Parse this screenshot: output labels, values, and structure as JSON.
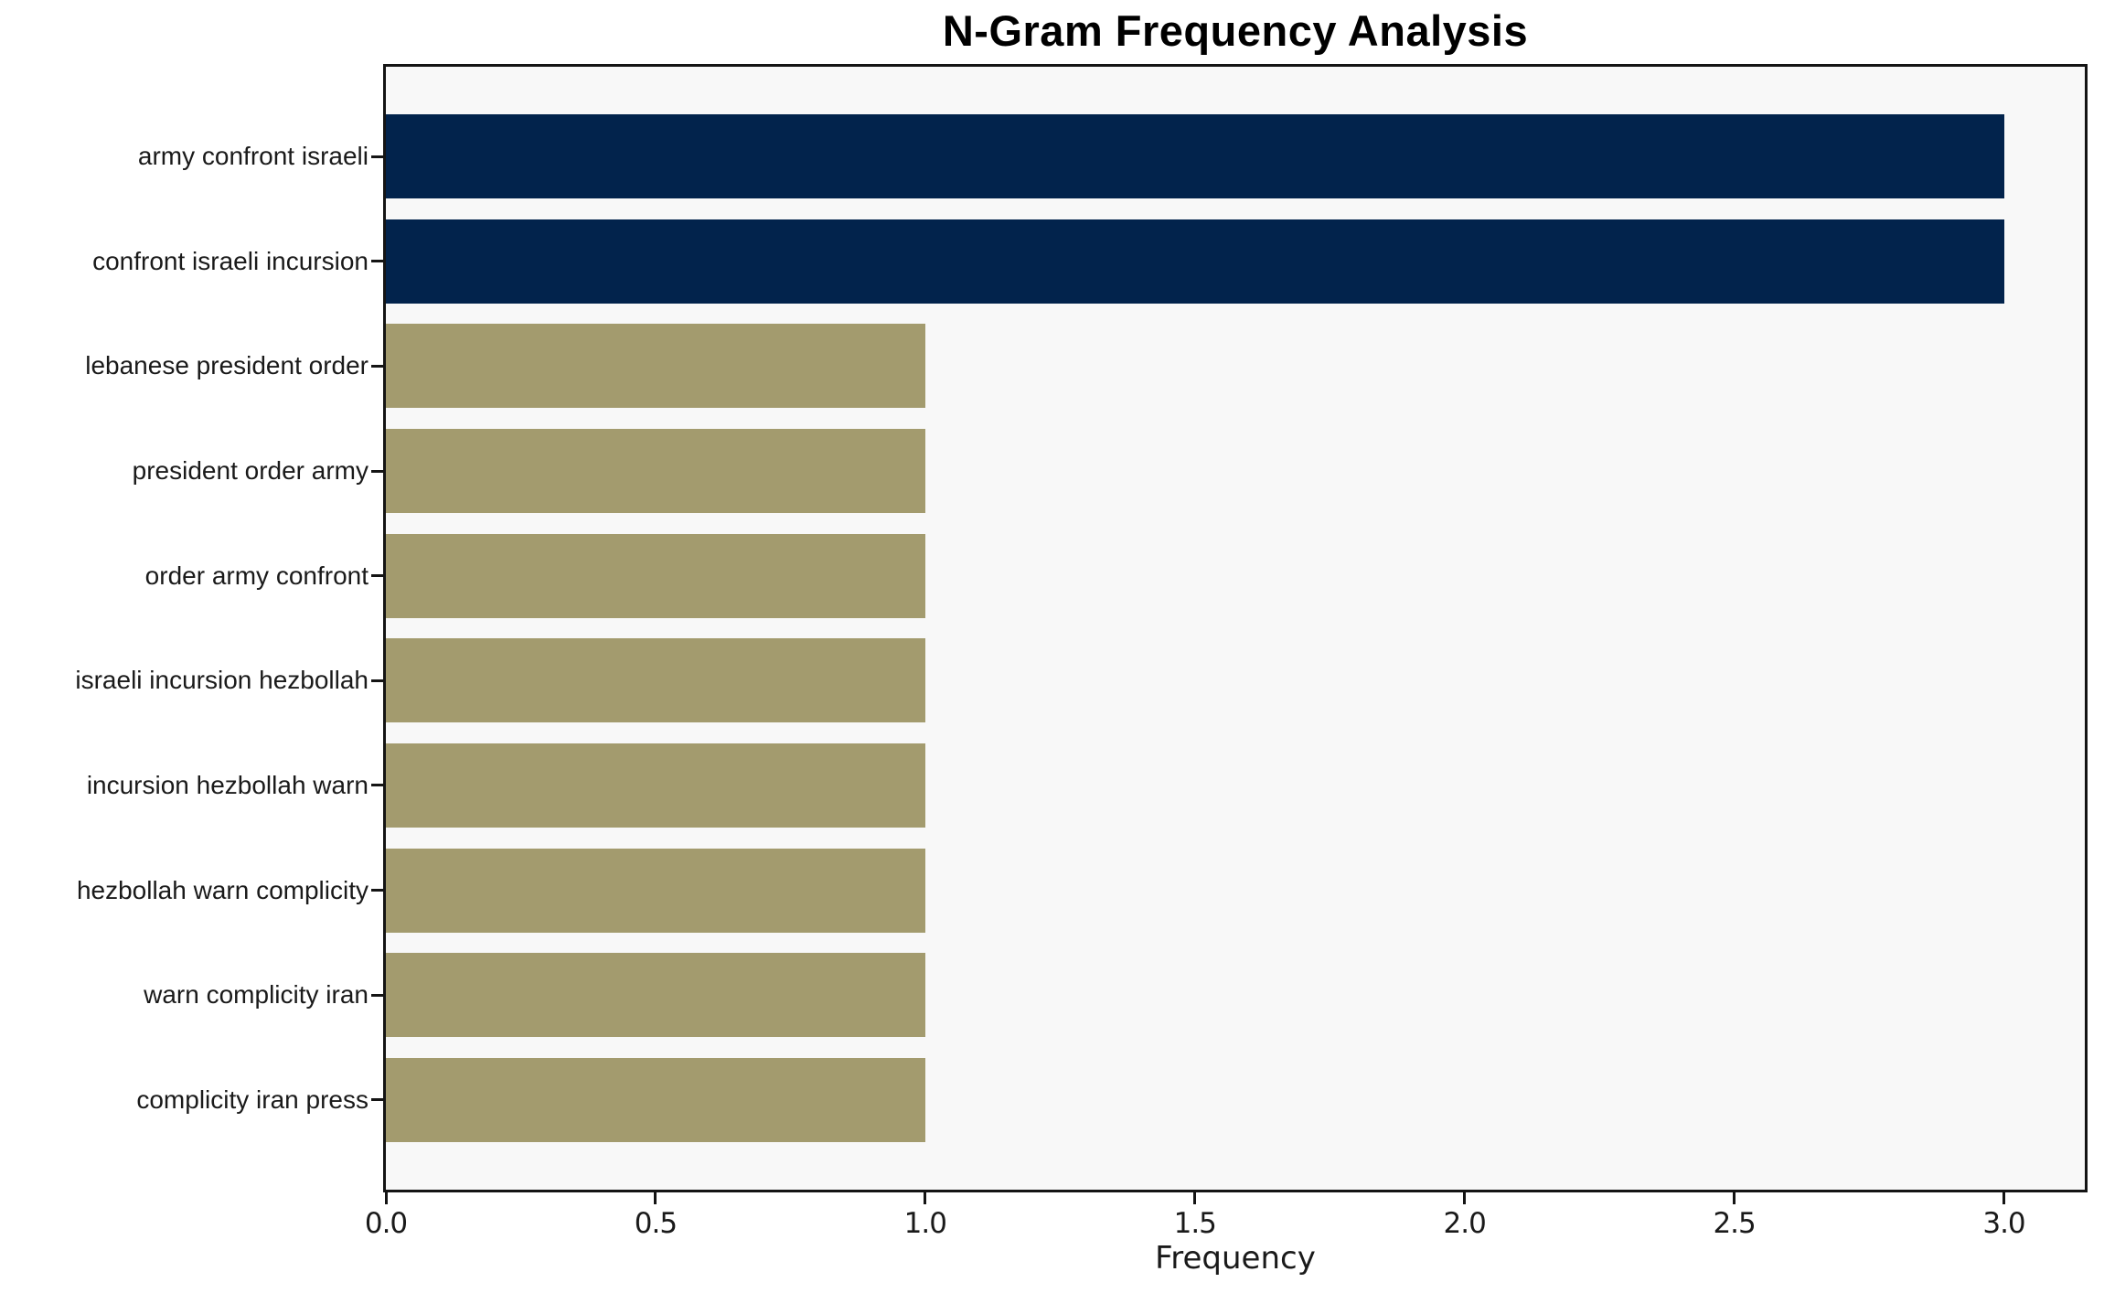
{
  "chart_data": {
    "type": "bar",
    "orientation": "horizontal",
    "title": "N-Gram Frequency Analysis",
    "xlabel": "Frequency",
    "ylabel": "",
    "categories": [
      "army confront israeli",
      "confront israeli incursion",
      "lebanese president order",
      "president order army",
      "order army confront",
      "israeli incursion hezbollah",
      "incursion hezbollah warn",
      "hezbollah warn complicity",
      "warn complicity iran",
      "complicity iran press"
    ],
    "values": [
      3,
      3,
      1,
      1,
      1,
      1,
      1,
      1,
      1,
      1
    ],
    "bar_colors": [
      "#02234c",
      "#02234c",
      "#a39b6e",
      "#a39b6e",
      "#a39b6e",
      "#a39b6e",
      "#a39b6e",
      "#a39b6e",
      "#a39b6e",
      "#a39b6e"
    ],
    "xlim": [
      0,
      3.15
    ],
    "xticks": [
      0.0,
      0.5,
      1.0,
      1.5,
      2.0,
      2.5,
      3.0
    ],
    "xtick_labels": [
      "0.0",
      "0.5",
      "1.0",
      "1.5",
      "2.0",
      "2.5",
      "3.0"
    ],
    "grid": false,
    "legend_position": "none",
    "colors": {
      "high_frequency_bar": "#02234c",
      "low_frequency_bar": "#a39b6e",
      "plot_background": "#f8f8f8",
      "page_background": "#ffffff",
      "spine": "#141414",
      "text": "#1a1a1a"
    }
  }
}
